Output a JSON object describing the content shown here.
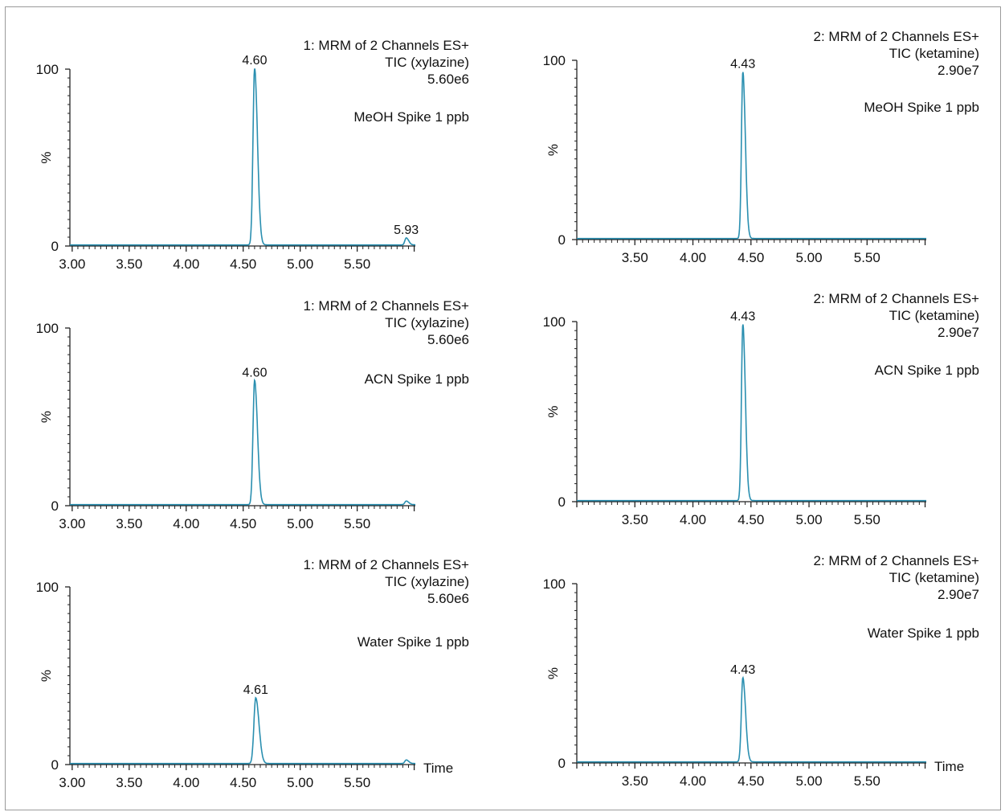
{
  "colors": {
    "trace": "#2a8fb0",
    "axis": "#222222",
    "frame": "#9a9a9a"
  },
  "chart_data": [
    {
      "type": "line",
      "row": 0,
      "col": 0,
      "header": [
        "1: MRM of 2 Channels ES+",
        "TIC (xylazine)",
        "5.60e6"
      ],
      "sample": "MeOH Spike 1 ppb",
      "ylabel": "%",
      "xlabel": "",
      "yticks": [
        "100",
        "0"
      ],
      "xticks": [
        "3.00",
        "3.50",
        "4.00",
        "4.50",
        "5.00",
        "5.50"
      ],
      "xlim": [
        2.98,
        6.01
      ],
      "ylim": [
        0,
        100
      ],
      "peaks": [
        {
          "rt": 4.6,
          "height": 100,
          "width": 0.014,
          "label": "4.60"
        },
        {
          "rt": 5.93,
          "height": 4,
          "width": 0.012,
          "label": "5.93"
        }
      ]
    },
    {
      "type": "line",
      "row": 0,
      "col": 1,
      "header": [
        "2: MRM of 2 Channels ES+",
        "TIC (ketamine)",
        "2.90e7"
      ],
      "sample": "MeOH Spike 1 ppb",
      "ylabel": "%",
      "xlabel": "",
      "yticks": [
        "100",
        "0"
      ],
      "xticks": [
        "3.50",
        "4.00",
        "4.50",
        "5.00",
        "5.50"
      ],
      "xlim": [
        3.0,
        6.01
      ],
      "ylim": [
        0,
        100
      ],
      "peaks": [
        {
          "rt": 4.43,
          "height": 93,
          "width": 0.012,
          "label": "4.43"
        }
      ]
    },
    {
      "type": "line",
      "row": 1,
      "col": 0,
      "header": [
        "1: MRM of 2 Channels ES+",
        "TIC (xylazine)",
        "5.60e6"
      ],
      "sample": "ACN Spike 1 ppb",
      "ylabel": "%",
      "xlabel": "",
      "yticks": [
        "100",
        "0"
      ],
      "xticks": [
        "3.00",
        "3.50",
        "4.00",
        "4.50",
        "5.00",
        "5.50"
      ],
      "xlim": [
        2.98,
        6.01
      ],
      "ylim": [
        0,
        100
      ],
      "peaks": [
        {
          "rt": 4.6,
          "height": 70,
          "width": 0.014,
          "label": "4.60"
        },
        {
          "rt": 5.93,
          "height": 2,
          "width": 0.012,
          "label": ""
        }
      ]
    },
    {
      "type": "line",
      "row": 1,
      "col": 1,
      "header": [
        "2: MRM of 2 Channels ES+",
        "TIC (ketamine)",
        "2.90e7"
      ],
      "sample": "ACN Spike 1 ppb",
      "ylabel": "%",
      "xlabel": "",
      "yticks": [
        "100",
        "0"
      ],
      "xticks": [
        "3.50",
        "4.00",
        "4.50",
        "5.00",
        "5.50"
      ],
      "xlim": [
        3.0,
        6.01
      ],
      "ylim": [
        0,
        100
      ],
      "peaks": [
        {
          "rt": 4.43,
          "height": 98,
          "width": 0.012,
          "label": "4.43"
        }
      ]
    },
    {
      "type": "line",
      "row": 2,
      "col": 0,
      "header": [
        "1: MRM of 2 Channels ES+",
        "TIC (xylazine)",
        "5.60e6"
      ],
      "sample": "Water Spike 1 ppb",
      "ylabel": "%",
      "xlabel": "Time",
      "yticks": [
        "100",
        "0"
      ],
      "xticks": [
        "3.00",
        "3.50",
        "4.00",
        "4.50",
        "5.00",
        "5.50"
      ],
      "xlim": [
        2.98,
        6.01
      ],
      "ylim": [
        0,
        100
      ],
      "peaks": [
        {
          "rt": 4.61,
          "height": 37,
          "width": 0.016,
          "label": "4.61"
        },
        {
          "rt": 5.93,
          "height": 2,
          "width": 0.012,
          "label": ""
        }
      ]
    },
    {
      "type": "line",
      "row": 2,
      "col": 1,
      "header": [
        "2: MRM of 2 Channels ES+",
        "TIC (ketamine)",
        "2.90e7"
      ],
      "sample": "Water Spike 1 ppb",
      "ylabel": "%",
      "xlabel": "Time",
      "yticks": [
        "100",
        "0"
      ],
      "xticks": [
        "3.50",
        "4.00",
        "4.50",
        "5.00",
        "5.50"
      ],
      "xlim": [
        3.0,
        6.01
      ],
      "ylim": [
        0,
        100
      ],
      "peaks": [
        {
          "rt": 4.43,
          "height": 47,
          "width": 0.013,
          "label": "4.43"
        }
      ]
    }
  ]
}
